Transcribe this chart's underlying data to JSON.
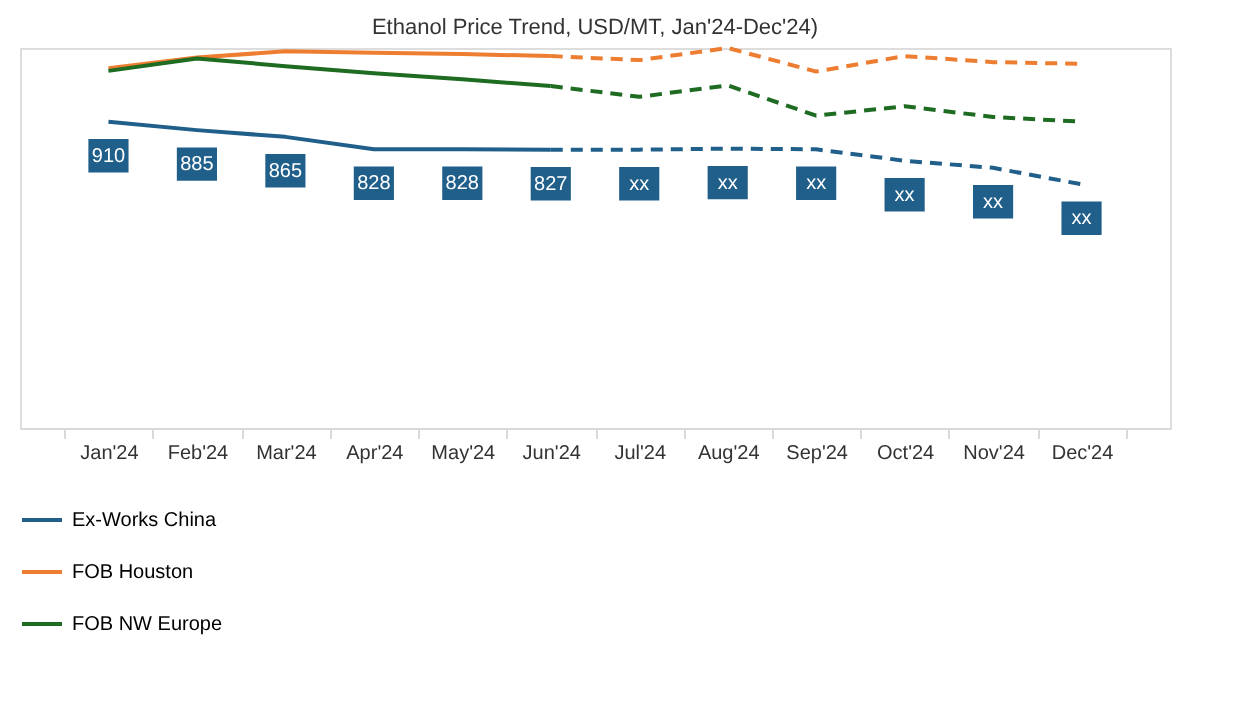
{
  "chart_data": {
    "type": "line",
    "title": "Ethanol Price Trend, USD/MT, Jan'24-Dec'24)",
    "legend": "bottom",
    "grid": false,
    "tick_labels": "x",
    "categories": [
      "Jan'24",
      "Feb'24",
      "Mar'24",
      "Apr'24",
      "May'24",
      "Jun'24",
      "Jul'24",
      "Aug'24",
      "Sep'24",
      "Oct'24",
      "Nov'24",
      "Dec'24"
    ],
    "series": [
      {
        "name": "Ex-Works China",
        "color": "#215f8b",
        "line_style": "solid",
        "values": [
          910,
          885,
          865,
          828,
          828,
          827,
          null,
          null,
          null,
          null,
          null,
          null
        ],
        "value_labels": [
          "910",
          "885",
          "865",
          "828",
          "828",
          "827",
          null,
          null,
          null,
          null,
          null,
          null
        ]
      },
      {
        "color": "#215f8b",
        "line_style": "dashed",
        "values": [
          null,
          null,
          null,
          null,
          null,
          827,
          827,
          830,
          828,
          794,
          773,
          724
        ],
        "value_labels": [
          null,
          null,
          null,
          null,
          null,
          null,
          "xx",
          "xx",
          "xx",
          "xx",
          "xx",
          "xx"
        ]
      },
      {
        "name": "FOB Houston",
        "color": "#ed7d31",
        "line_style": "solid",
        "values": [
          1069,
          1101,
          1119,
          1115,
          1111,
          1105,
          null,
          null,
          null,
          null,
          null,
          null
        ]
      },
      {
        "color": "#ed7d31",
        "line_style": "dashed",
        "values": [
          null,
          null,
          null,
          null,
          null,
          1105,
          1093,
          1129,
          1059,
          1105,
          1087,
          1082
        ]
      },
      {
        "name": "FOB NW Europe",
        "color": "#1e6b22",
        "line_style": "solid",
        "values": [
          1061,
          1098,
          1075,
          1054,
          1036,
          1016,
          null,
          null,
          null,
          null,
          null,
          null
        ]
      },
      {
        "color": "#1e6b22",
        "line_style": "dashed",
        "values": [
          null,
          null,
          null,
          null,
          null,
          1016,
          984,
          1018,
          928,
          956,
          924,
          910
        ]
      }
    ]
  }
}
